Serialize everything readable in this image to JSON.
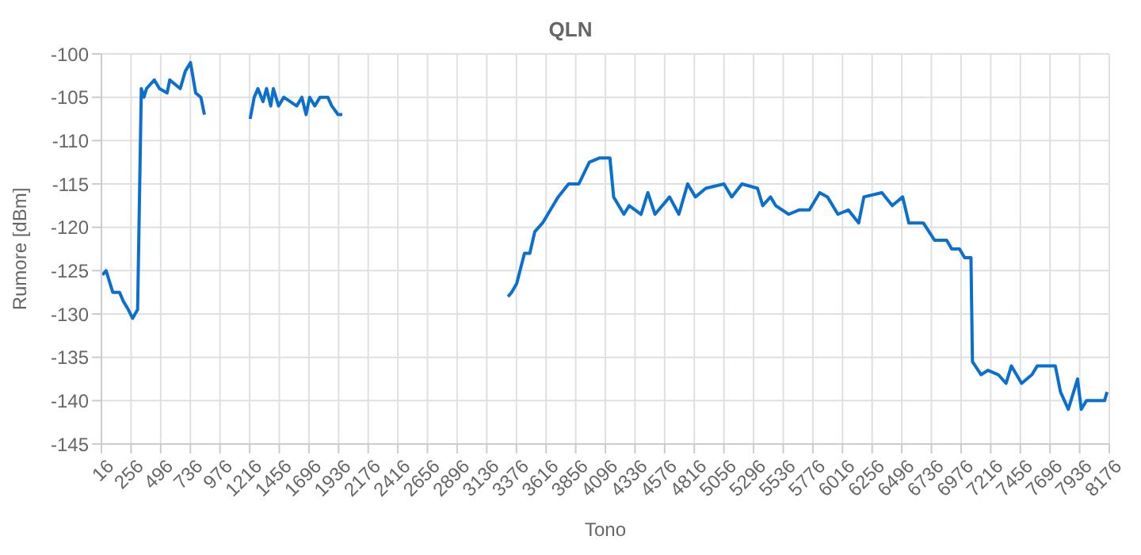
{
  "chart_data": {
    "type": "line",
    "title": "QLN",
    "xlabel": "Tono",
    "ylabel": "Rumore [dBm]",
    "x": [
      25,
      54,
      108,
      163,
      192,
      234,
      268,
      309,
      339,
      360,
      381,
      444,
      486,
      548,
      569,
      654,
      695,
      737,
      779,
      821,
      850,
      1000,
      1220,
      1253,
      1283,
      1324,
      1353,
      1387,
      1408,
      1450,
      1492,
      1597,
      1639,
      1673,
      1702,
      1743,
      1786,
      1849,
      1881,
      1932,
      1966,
      2500,
      3308,
      3337,
      3378,
      3441,
      3484,
      3525,
      3588,
      3651,
      3714,
      3798,
      3881,
      3966,
      4050,
      4133,
      4163,
      4246,
      4289,
      4385,
      4440,
      4498,
      4616,
      4691,
      4762,
      4825,
      4909,
      5056,
      5119,
      5202,
      5328,
      5370,
      5433,
      5475,
      5580,
      5664,
      5748,
      5831,
      5894,
      5979,
      6063,
      6147,
      6189,
      6335,
      6419,
      6503,
      6553,
      6670,
      6762,
      6859,
      6900,
      6963,
      7005,
      7056,
      7068,
      7138,
      7194,
      7277,
      7340,
      7383,
      7466,
      7550,
      7592,
      7739,
      7781,
      7844,
      7919,
      7949,
      7991,
      8137,
      8158
    ],
    "series": [
      {
        "color": "#0b6fcf",
        "values": [
          -125.5,
          -125,
          -127.5,
          -127.5,
          -128.5,
          -129.5,
          -130.5,
          -129.5,
          -104,
          -105,
          -104,
          -103,
          -104,
          -104.5,
          -103,
          -104,
          -102,
          -101,
          -104.5,
          -105,
          -107,
          null,
          -107.5,
          -105,
          -104,
          -105.5,
          -104,
          -106,
          -104,
          -106,
          -105,
          -106,
          -105,
          -107,
          -105,
          -106,
          -105,
          -105,
          -106,
          -107,
          -107,
          null,
          -128,
          -127.5,
          -126.5,
          -123,
          -123,
          -120.5,
          -119.5,
          -118,
          -116.5,
          -115,
          -115,
          -112.5,
          -112,
          -112,
          -116.5,
          -118.5,
          -117.5,
          -118.5,
          -116,
          -118.5,
          -116.5,
          -118.5,
          -115,
          -116.5,
          -115.5,
          -115,
          -116.5,
          -115,
          -115.5,
          -117.5,
          -116.5,
          -117.5,
          -118.5,
          -118,
          -118,
          -116,
          -116.5,
          -118.5,
          -118,
          -119.5,
          -116.5,
          -116,
          -117.5,
          -116.5,
          -119.5,
          -119.5,
          -121.5,
          -121.5,
          -122.5,
          -122.5,
          -123.5,
          -123.5,
          -135.5,
          -137,
          -136.5,
          -137,
          -138,
          -136,
          -138,
          -137,
          -136,
          -136,
          -139,
          -141,
          -137.5,
          -141,
          -140,
          -140,
          -139
        ]
      }
    ],
    "xlim": [
      16,
      8176
    ],
    "xticks": [
      16,
      256,
      496,
      736,
      976,
      1216,
      1456,
      1696,
      1936,
      2176,
      2416,
      2656,
      2896,
      3136,
      3376,
      3616,
      3856,
      4096,
      4336,
      4576,
      4816,
      5056,
      5296,
      5536,
      5776,
      6016,
      6256,
      6496,
      6736,
      6976,
      7216,
      7456,
      7696,
      7936,
      8176
    ],
    "ylim": [
      -145,
      -100
    ],
    "yticks": [
      -145,
      -140,
      -135,
      -130,
      -125,
      -120,
      -115,
      -110,
      -105,
      -100
    ],
    "grid": true,
    "marker": "none",
    "line_style": "solid"
  }
}
